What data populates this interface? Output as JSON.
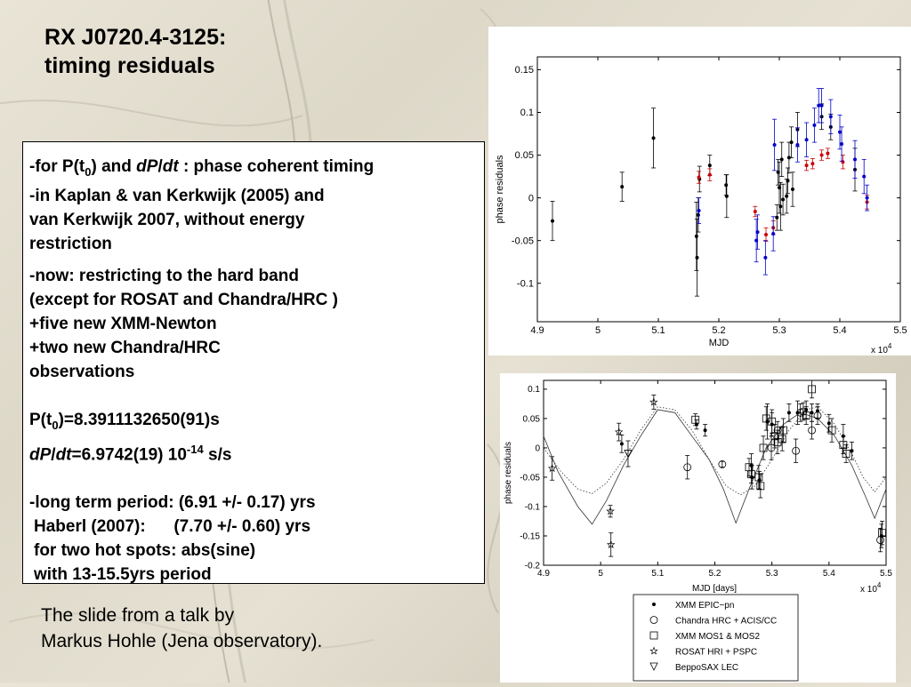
{
  "slide": {
    "title_line1": "RX J0720.4-3125:",
    "title_line2": "timing residuals",
    "caption_line1": "The slide from a talk by",
    "caption_line2": "Markus Hohle (Jena observatory)."
  },
  "textbox": {
    "l1_a": "-for P(t",
    "l1_sub": "0",
    "l1_b": ")  and ",
    "l1_dp": "dP",
    "l1_slash": "/",
    "l1_dt": "dt",
    "l1_c": " : phase coherent timing",
    "l2": "-in Kaplan & van Kerkwijk (2005) and",
    "l3": "van Kerkwijk 2007, without energy",
    "l4": "restriction",
    "l5": "-now: restricting to the hard band",
    "l6": "(except for ROSAT and Chandra/HRC )",
    "l7": "+five new XMM-Newton",
    "l8": "+two new Chandra/HRC",
    "l9": "observations",
    "p_a": "P(t",
    "p_sub": "0",
    "p_b": ")=8.3911132650(91)s",
    "pd_dp": "dP",
    "pd_slash": "/",
    "pd_dt": "dt",
    "pd_b": "=6.9742(19) 10",
    "pd_sup": "-14",
    "pd_c": " s/s",
    "lt1": "-long term period: (6.91 +/- 0.17) yrs",
    "lt2": "Haberl (2007):      (7.70 +/- 0.60) yrs",
    "lt3": "for two hot spots: abs(sine)",
    "lt4": "with 13-15.5yrs period"
  },
  "chart_data": [
    {
      "type": "scatter",
      "title": "",
      "xlabel": "MJD",
      "ylabel": "phase residuals",
      "x_multiplier_label": "x 10",
      "x_multiplier_exp": "4",
      "xlim": [
        4.9,
        5.5
      ],
      "ylim": [
        -0.145,
        0.165
      ],
      "xticks": [
        4.9,
        5,
        5.1,
        5.2,
        5.3,
        5.4,
        5.5
      ],
      "xtick_labels": [
        "4.9",
        "5",
        "5.1",
        "5.2",
        "5.3",
        "5.4",
        "5.5"
      ],
      "yticks": [
        -0.1,
        -0.05,
        0,
        0.05,
        0.1,
        0.15
      ],
      "ytick_labels": [
        "-0.1",
        "-0.05",
        "0",
        "0.05",
        "0.1",
        "0.15"
      ],
      "grid": false,
      "series": [
        {
          "color": "#000000",
          "points": [
            {
              "x": 4.925,
              "y": -0.027,
              "e": 0.023
            },
            {
              "x": 5.04,
              "y": 0.013,
              "e": 0.017
            },
            {
              "x": 5.092,
              "y": 0.07,
              "e": 0.035
            },
            {
              "x": 5.163,
              "y": -0.045,
              "e": 0.04
            },
            {
              "x": 5.164,
              "y": -0.07,
              "e": 0.045
            },
            {
              "x": 5.166,
              "y": -0.02,
              "e": 0.02
            },
            {
              "x": 5.168,
              "y": 0.022,
              "e": 0.015
            },
            {
              "x": 5.185,
              "y": 0.038,
              "e": 0.012
            },
            {
              "x": 5.212,
              "y": 0.015,
              "e": 0.012
            },
            {
              "x": 5.213,
              "y": 0.002,
              "e": 0.025
            },
            {
              "x": 5.296,
              "y": -0.023,
              "e": 0.015
            },
            {
              "x": 5.298,
              "y": 0.03,
              "e": 0.015
            },
            {
              "x": 5.3,
              "y": 0.012,
              "e": 0.03
            },
            {
              "x": 5.302,
              "y": -0.01,
              "e": 0.028
            },
            {
              "x": 5.304,
              "y": 0.045,
              "e": 0.02
            },
            {
              "x": 5.306,
              "y": -0.002,
              "e": 0.018
            },
            {
              "x": 5.312,
              "y": 0.002,
              "e": 0.02
            },
            {
              "x": 5.314,
              "y": 0.02,
              "e": 0.015
            },
            {
              "x": 5.316,
              "y": 0.047,
              "e": 0.018
            },
            {
              "x": 5.32,
              "y": 0.065,
              "e": 0.018
            },
            {
              "x": 5.322,
              "y": 0.01,
              "e": 0.02
            },
            {
              "x": 5.33,
              "y": 0.08,
              "e": 0.02
            },
            {
              "x": 5.37,
              "y": 0.095,
              "e": 0.015
            },
            {
              "x": 5.385,
              "y": 0.083,
              "e": 0.015
            },
            {
              "x": 5.425,
              "y": 0.033,
              "e": 0.025
            }
          ]
        },
        {
          "color": "#cc0000",
          "points": [
            {
              "x": 5.167,
              "y": 0.024,
              "e": 0.007
            },
            {
              "x": 5.185,
              "y": 0.027,
              "e": 0.007
            },
            {
              "x": 5.26,
              "y": -0.016,
              "e": 0.006
            },
            {
              "x": 5.278,
              "y": -0.043,
              "e": 0.008
            },
            {
              "x": 5.29,
              "y": -0.035,
              "e": 0.008
            },
            {
              "x": 5.345,
              "y": 0.038,
              "e": 0.006
            },
            {
              "x": 5.355,
              "y": 0.04,
              "e": 0.006
            },
            {
              "x": 5.37,
              "y": 0.05,
              "e": 0.006
            },
            {
              "x": 5.38,
              "y": 0.052,
              "e": 0.006
            },
            {
              "x": 5.405,
              "y": 0.042,
              "e": 0.008
            },
            {
              "x": 5.445,
              "y": -0.005,
              "e": 0.008
            }
          ]
        },
        {
          "color": "#0000cc",
          "points": [
            {
              "x": 5.167,
              "y": -0.015,
              "e": 0.015
            },
            {
              "x": 5.262,
              "y": -0.05,
              "e": 0.025
            },
            {
              "x": 5.264,
              "y": -0.04,
              "e": 0.02
            },
            {
              "x": 5.277,
              "y": -0.07,
              "e": 0.02
            },
            {
              "x": 5.29,
              "y": -0.042,
              "e": 0.02
            },
            {
              "x": 5.292,
              "y": 0.062,
              "e": 0.03
            },
            {
              "x": 5.33,
              "y": 0.062,
              "e": 0.02
            },
            {
              "x": 5.345,
              "y": 0.068,
              "e": 0.02
            },
            {
              "x": 5.358,
              "y": 0.085,
              "e": 0.02
            },
            {
              "x": 5.365,
              "y": 0.108,
              "e": 0.02
            },
            {
              "x": 5.37,
              "y": 0.108,
              "e": 0.02
            },
            {
              "x": 5.385,
              "y": 0.095,
              "e": 0.02
            },
            {
              "x": 5.4,
              "y": 0.077,
              "e": 0.02
            },
            {
              "x": 5.403,
              "y": 0.063,
              "e": 0.02
            },
            {
              "x": 5.425,
              "y": 0.045,
              "e": 0.022
            },
            {
              "x": 5.44,
              "y": 0.025,
              "e": 0.02
            },
            {
              "x": 5.445,
              "y": 0.0,
              "e": 0.015
            }
          ]
        }
      ]
    },
    {
      "type": "scatter",
      "title": "",
      "xlabel": "MJD [days]",
      "ylabel": "phase residuals",
      "x_multiplier_label": "x 10",
      "x_multiplier_exp": "4",
      "xlim": [
        4.9,
        5.5
      ],
      "ylim": [
        -0.2,
        0.115
      ],
      "xticks": [
        4.9,
        5,
        5.1,
        5.2,
        5.3,
        5.4,
        5.5
      ],
      "xtick_labels": [
        "4.9",
        "5",
        "5.1",
        "5.2",
        "5.3",
        "5.4",
        "5.5"
      ],
      "yticks": [
        -0.2,
        -0.15,
        -0.1,
        -0.05,
        0,
        0.05,
        0.1
      ],
      "ytick_labels": [
        "-0.2",
        "-0.15",
        "-0.1",
        "-0.05",
        "0",
        "0.05",
        "0.1"
      ],
      "grid": false,
      "legend_position": "below-right",
      "legend": [
        {
          "symbol": "dot",
          "label": "XMM EPIC−pn"
        },
        {
          "symbol": "circle",
          "label": "Chandra HRC + ACIS/CC"
        },
        {
          "symbol": "square",
          "label": "XMM MOS1 & MOS2"
        },
        {
          "symbol": "star",
          "label": "ROSAT HRI + PSPC"
        },
        {
          "symbol": "triangle",
          "label": "BeppoSAX LEC"
        }
      ],
      "curves": [
        {
          "style": "solid",
          "points": [
            [
              4.9,
              0.02
            ],
            [
              4.925,
              -0.04
            ],
            [
              4.96,
              -0.1
            ],
            [
              4.985,
              -0.13
            ],
            [
              5.01,
              -0.09
            ],
            [
              5.04,
              -0.03
            ],
            [
              5.07,
              0.02
            ],
            [
              5.1,
              0.065
            ],
            [
              5.13,
              0.06
            ],
            [
              5.16,
              0.02
            ],
            [
              5.19,
              -0.02
            ],
            [
              5.215,
              -0.07
            ],
            [
              5.237,
              -0.128
            ],
            [
              5.26,
              -0.07
            ],
            [
              5.29,
              0.0
            ],
            [
              5.32,
              0.04
            ],
            [
              5.35,
              0.06
            ],
            [
              5.38,
              0.05
            ],
            [
              5.41,
              0.02
            ],
            [
              5.44,
              -0.03
            ],
            [
              5.465,
              -0.085
            ],
            [
              5.48,
              -0.12
            ],
            [
              5.5,
              -0.07
            ]
          ]
        },
        {
          "style": "dotted",
          "points": [
            [
              4.9,
              0.0
            ],
            [
              4.93,
              -0.04
            ],
            [
              4.96,
              -0.07
            ],
            [
              4.985,
              -0.078
            ],
            [
              5.01,
              -0.06
            ],
            [
              5.04,
              -0.02
            ],
            [
              5.07,
              0.03
            ],
            [
              5.1,
              0.07
            ],
            [
              5.13,
              0.065
            ],
            [
              5.16,
              0.03
            ],
            [
              5.19,
              -0.02
            ],
            [
              5.22,
              -0.065
            ],
            [
              5.245,
              -0.08
            ],
            [
              5.27,
              -0.065
            ],
            [
              5.3,
              -0.02
            ],
            [
              5.33,
              0.03
            ],
            [
              5.36,
              0.065
            ],
            [
              5.38,
              0.07
            ],
            [
              5.41,
              0.04
            ],
            [
              5.44,
              -0.01
            ],
            [
              5.46,
              -0.05
            ],
            [
              5.48,
              -0.075
            ],
            [
              5.5,
              -0.05
            ]
          ]
        }
      ],
      "series": [
        {
          "symbol": "dot",
          "points": [
            {
              "x": 5.037,
              "y": 0.007,
              "e": 0.015
            },
            {
              "x": 5.168,
              "y": 0.04,
              "e": 0.008
            },
            {
              "x": 5.183,
              "y": 0.03,
              "e": 0.01
            },
            {
              "x": 5.264,
              "y": -0.03,
              "e": 0.02
            },
            {
              "x": 5.265,
              "y": -0.05,
              "e": 0.02
            },
            {
              "x": 5.278,
              "y": -0.055,
              "e": 0.015
            },
            {
              "x": 5.292,
              "y": 0.045,
              "e": 0.03
            },
            {
              "x": 5.3,
              "y": 0.04,
              "e": 0.02
            },
            {
              "x": 5.33,
              "y": 0.06,
              "e": 0.015
            },
            {
              "x": 5.345,
              "y": 0.06,
              "e": 0.02
            },
            {
              "x": 5.36,
              "y": 0.065,
              "e": 0.015
            },
            {
              "x": 5.37,
              "y": 0.06,
              "e": 0.015
            },
            {
              "x": 5.38,
              "y": 0.063,
              "e": 0.012
            },
            {
              "x": 5.4,
              "y": 0.042,
              "e": 0.015
            },
            {
              "x": 5.425,
              "y": 0.02,
              "e": 0.02
            },
            {
              "x": 5.44,
              "y": -0.005,
              "e": 0.015
            },
            {
              "x": 5.492,
              "y": -0.15,
              "e": 0.02
            }
          ]
        },
        {
          "symbol": "circle",
          "points": [
            {
              "x": 5.152,
              "y": -0.033,
              "e": 0.02
            },
            {
              "x": 5.213,
              "y": -0.028,
              "e": 0.005
            },
            {
              "x": 5.299,
              "y": 0.0,
              "e": 0.02
            },
            {
              "x": 5.31,
              "y": 0.03,
              "e": 0.015
            },
            {
              "x": 5.342,
              "y": -0.005,
              "e": 0.02
            },
            {
              "x": 5.35,
              "y": 0.06,
              "e": 0.015
            },
            {
              "x": 5.355,
              "y": 0.062,
              "e": 0.015
            },
            {
              "x": 5.37,
              "y": 0.03,
              "e": 0.015
            },
            {
              "x": 5.38,
              "y": 0.055,
              "e": 0.015
            },
            {
              "x": 5.49,
              "y": -0.157,
              "e": 0.02
            }
          ]
        },
        {
          "symbol": "square",
          "points": [
            {
              "x": 5.166,
              "y": 0.048,
              "e": 0.01
            },
            {
              "x": 5.26,
              "y": -0.033,
              "e": 0.015
            },
            {
              "x": 5.264,
              "y": -0.045,
              "e": 0.015
            },
            {
              "x": 5.277,
              "y": -0.05,
              "e": 0.02
            },
            {
              "x": 5.28,
              "y": -0.065,
              "e": 0.02
            },
            {
              "x": 5.285,
              "y": 0.0,
              "e": 0.02
            },
            {
              "x": 5.29,
              "y": 0.05,
              "e": 0.02
            },
            {
              "x": 5.3,
              "y": 0.045,
              "e": 0.02
            },
            {
              "x": 5.305,
              "y": 0.02,
              "e": 0.02
            },
            {
              "x": 5.31,
              "y": 0.01,
              "e": 0.02
            },
            {
              "x": 5.318,
              "y": 0.015,
              "e": 0.02
            },
            {
              "x": 5.32,
              "y": 0.03,
              "e": 0.02
            },
            {
              "x": 5.36,
              "y": 0.055,
              "e": 0.015
            },
            {
              "x": 5.37,
              "y": 0.1,
              "e": 0.015
            },
            {
              "x": 5.405,
              "y": 0.03,
              "e": 0.02
            },
            {
              "x": 5.425,
              "y": 0.005,
              "e": 0.015
            },
            {
              "x": 5.43,
              "y": -0.01,
              "e": 0.015
            },
            {
              "x": 5.493,
              "y": -0.145,
              "e": 0.02
            }
          ]
        },
        {
          "symbol": "star",
          "points": [
            {
              "x": 4.915,
              "y": -0.035,
              "e": 0.02
            },
            {
              "x": 5.017,
              "y": -0.108,
              "e": 0.01
            },
            {
              "x": 5.018,
              "y": -0.165,
              "e": 0.02
            },
            {
              "x": 5.032,
              "y": 0.027,
              "e": 0.015
            },
            {
              "x": 5.093,
              "y": 0.078,
              "e": 0.012
            }
          ]
        },
        {
          "symbol": "triangle",
          "points": [
            {
              "x": 5.048,
              "y": -0.01,
              "e": 0.022
            }
          ]
        }
      ]
    }
  ]
}
